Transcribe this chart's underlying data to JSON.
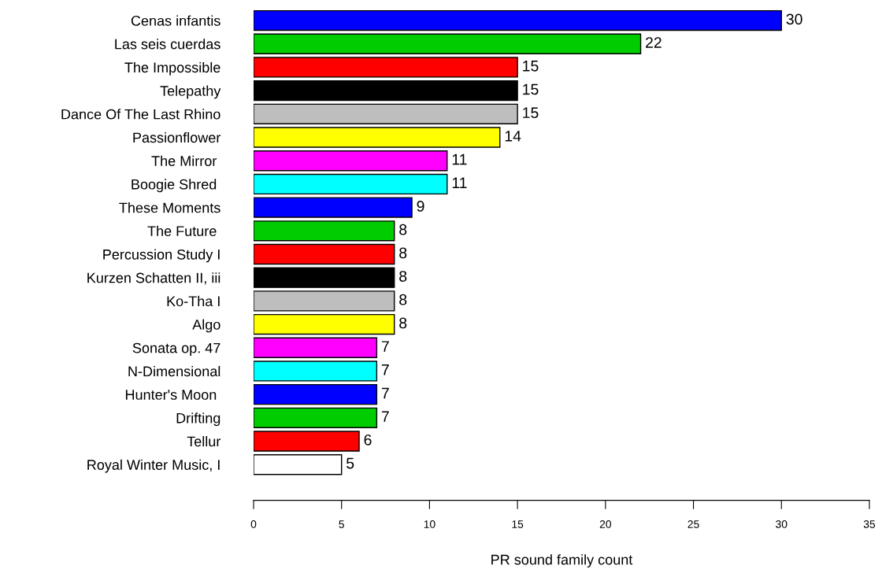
{
  "chart_data": {
    "type": "bar",
    "orientation": "horizontal",
    "xlabel": "PR sound family count",
    "categories": [
      "Cenas infantis",
      "Las seis cuerdas",
      "The Impossible",
      "Telepathy",
      "Dance Of The Last Rhino",
      "Passionflower",
      "The Mirror ",
      "Boogie Shred ",
      "These Moments",
      "The Future ",
      "Percussion Study I",
      "Kurzen Schatten II, iii",
      "Ko-Tha I",
      "Algo",
      "Sonata op. 47",
      "N-Dimensional",
      "Hunter's Moon ",
      "Drifting",
      "Tellur",
      "Royal Winter Music, I"
    ],
    "values": [
      30,
      22,
      15,
      15,
      15,
      14,
      11,
      11,
      9,
      8,
      8,
      8,
      8,
      8,
      7,
      7,
      7,
      7,
      6,
      5
    ],
    "colors": [
      "#0000ff",
      "#00cd00",
      "#ff0000",
      "#000000",
      "#bebebe",
      "#ffff00",
      "#ff00ff",
      "#00ffff",
      "#0000ff",
      "#00cd00",
      "#ff0000",
      "#000000",
      "#bebebe",
      "#ffff00",
      "#ff00ff",
      "#00ffff",
      "#0000ff",
      "#00cd00",
      "#ff0000",
      "#ffffff"
    ],
    "xlim": [
      0,
      35
    ],
    "xticks": [
      0,
      5,
      10,
      15,
      20,
      25,
      30,
      35
    ],
    "data_labels": true,
    "grid": false,
    "legend": false
  }
}
